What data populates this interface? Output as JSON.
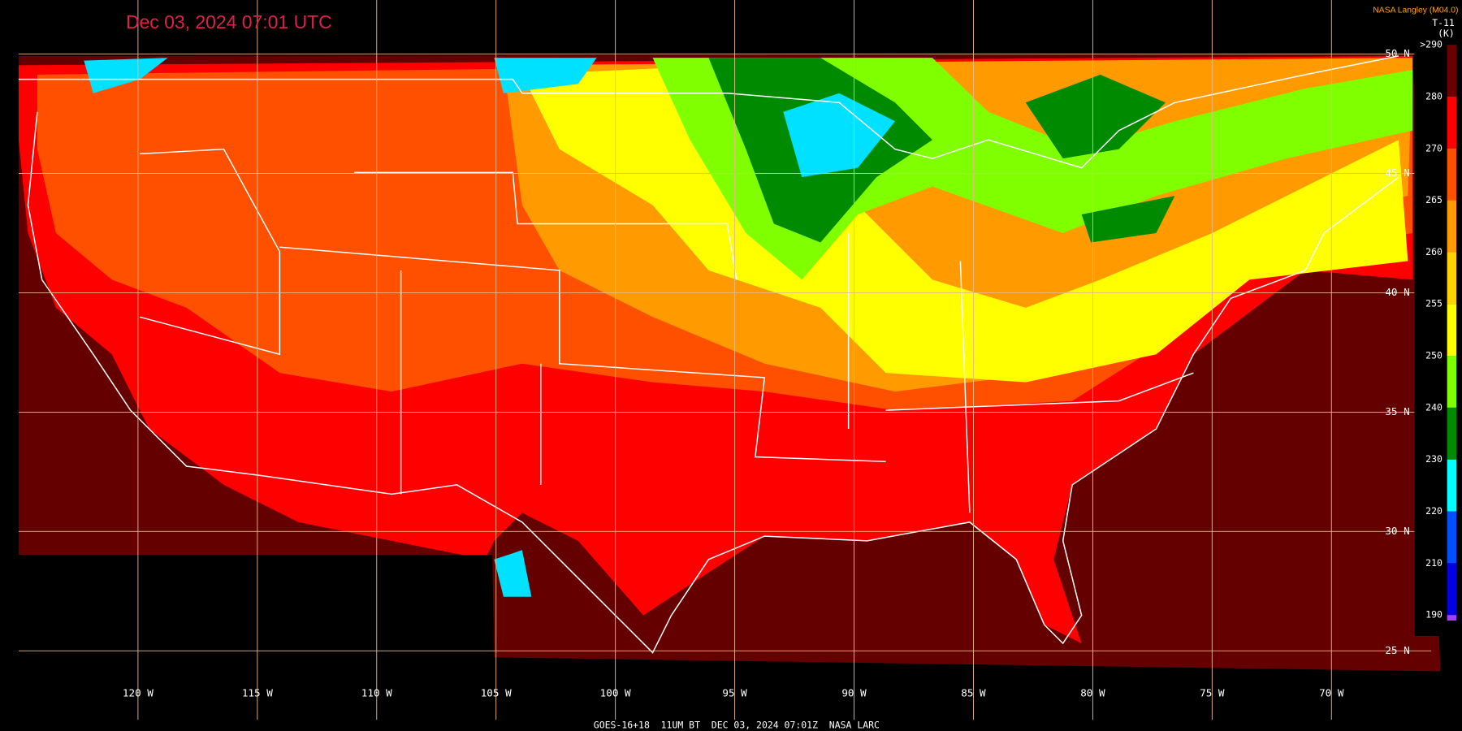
{
  "title": "Dec 03, 2024 07:01 UTC",
  "credit": "NASA Langley (M04.0)",
  "footer": "GOES-16+18  11UM BT  DEC 03, 2024 07:01Z  NASA LARC",
  "legend": {
    "title": "T-11",
    "unit": "(K)",
    "ticks": [
      {
        "value": 290,
        "label": ">290",
        "color": "#6a0000"
      },
      {
        "value": 280,
        "color": "#ff0000"
      },
      {
        "value": 270,
        "color": "#ff5000"
      },
      {
        "value": 265,
        "color": "#ff9a00"
      },
      {
        "value": 260,
        "color": "#ffd200"
      },
      {
        "value": 255,
        "color": "#ffff00"
      },
      {
        "value": 250,
        "color": "#80ff00"
      },
      {
        "value": 240,
        "color": "#008a00"
      },
      {
        "value": 230,
        "color": "#00ffff"
      },
      {
        "value": 220,
        "color": "#0050ff"
      },
      {
        "value": 210,
        "color": "#0000e0"
      },
      {
        "value": 190,
        "color": "#a040ff"
      }
    ]
  },
  "lat_lines": [
    {
      "value": 50,
      "label": "50 N"
    },
    {
      "value": 45,
      "label": "45 N"
    },
    {
      "value": 40,
      "label": "40 N"
    },
    {
      "value": 35,
      "label": "35 N"
    },
    {
      "value": 30,
      "label": "30 N"
    },
    {
      "value": 25,
      "label": "25 N"
    }
  ],
  "lon_lines": [
    {
      "value": 120,
      "label": "120 W"
    },
    {
      "value": 115,
      "label": "115 W"
    },
    {
      "value": 110,
      "label": "110 W"
    },
    {
      "value": 105,
      "label": "105 W"
    },
    {
      "value": 100,
      "label": "100 W"
    },
    {
      "value": 95,
      "label": "95 W"
    },
    {
      "value": 90,
      "label": "90 W"
    },
    {
      "value": 85,
      "label": "85 W"
    },
    {
      "value": 80,
      "label": "80 W"
    },
    {
      "value": 75,
      "label": "75 W"
    },
    {
      "value": 70,
      "label": "70 W"
    }
  ]
}
